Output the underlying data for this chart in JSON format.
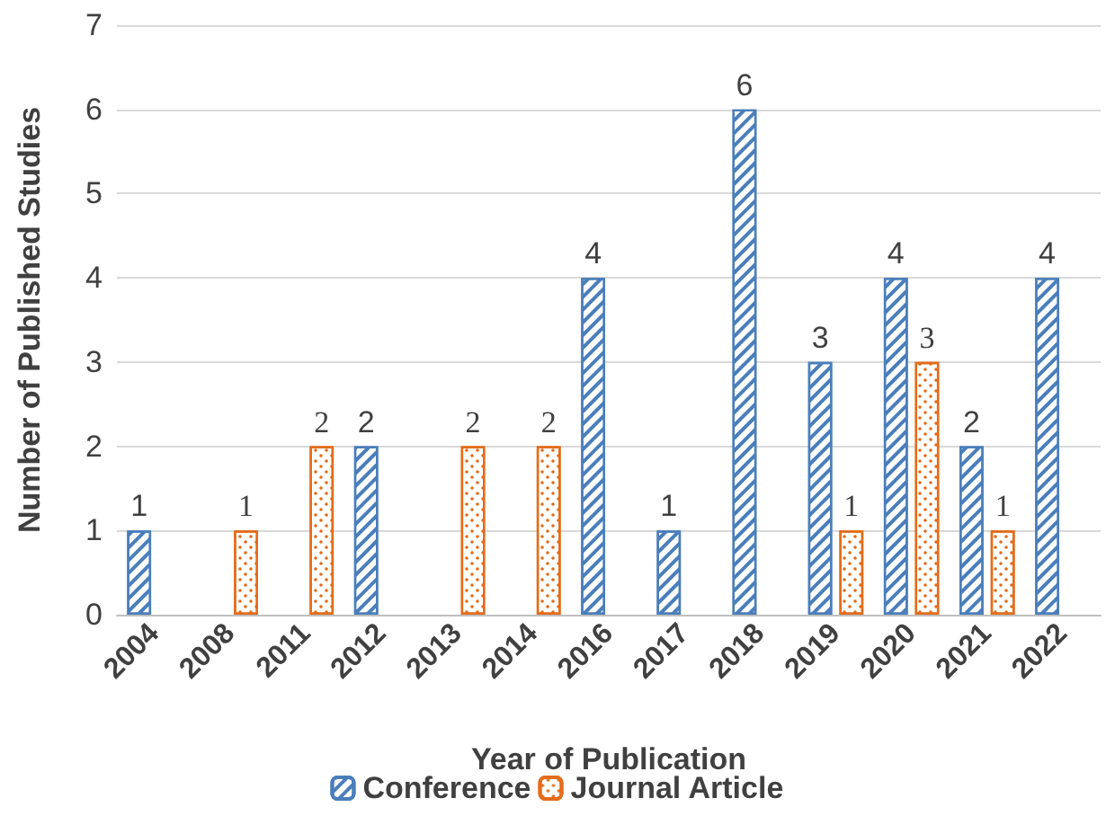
{
  "chart_data": {
    "type": "bar",
    "xlabel": "Year of Publication",
    "ylabel": "Number of Published Studies",
    "categories": [
      "2004",
      "2008",
      "2011",
      "2012",
      "2013",
      "2014",
      "2016",
      "2017",
      "2018",
      "2019",
      "2020",
      "2021",
      "2022"
    ],
    "series": [
      {
        "name": "Conference",
        "color": "#4a7ebb",
        "values": [
          1,
          null,
          null,
          2,
          null,
          null,
          4,
          1,
          6,
          3,
          4,
          2,
          4
        ]
      },
      {
        "name": "Journal Article",
        "color": "#e46c1a",
        "values": [
          null,
          1,
          2,
          null,
          2,
          2,
          null,
          null,
          null,
          1,
          3,
          1,
          null
        ]
      }
    ],
    "ylim": [
      0,
      7
    ],
    "yticks": [
      0,
      1,
      2,
      3,
      4,
      5,
      6,
      7
    ],
    "grid": "y",
    "legend": "bottom",
    "data_labels": true
  }
}
